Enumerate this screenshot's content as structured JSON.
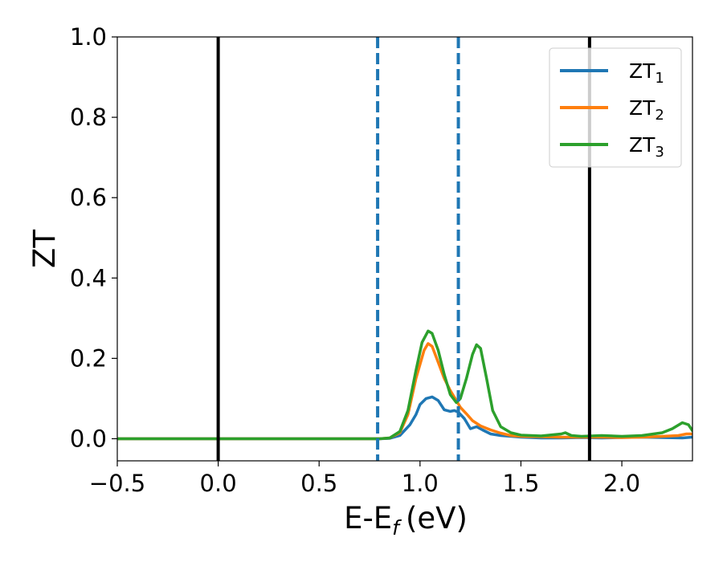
{
  "chart_data": {
    "type": "line",
    "xlabel": "E-E",
    "xlabel_sub": "f",
    "xlabel_unit": "(eV)",
    "ylabel": "ZT",
    "xlim": [
      -0.5,
      2.35
    ],
    "ylim": [
      -0.055,
      1.0
    ],
    "xticks": [
      -0.5,
      0.0,
      0.5,
      1.0,
      1.5,
      2.0
    ],
    "xtick_labels": [
      "−0.5",
      "0.0",
      "0.5",
      "1.0",
      "1.5",
      "2.0"
    ],
    "yticks": [
      0.0,
      0.2,
      0.4,
      0.6,
      0.8,
      1.0
    ],
    "ytick_labels": [
      "0.0",
      "0.2",
      "0.4",
      "0.6",
      "0.8",
      "1.0"
    ],
    "grid": false,
    "legend_position": "top-right",
    "vlines": [
      {
        "x": 0.0,
        "style": "solid",
        "color": "#000000"
      },
      {
        "x": 1.84,
        "style": "solid",
        "color": "#000000"
      },
      {
        "x": 0.79,
        "style": "dashed",
        "color": "#1f77b4"
      },
      {
        "x": 1.19,
        "style": "dashed",
        "color": "#1f77b4"
      }
    ],
    "series": [
      {
        "name": "ZT",
        "name_sub": "1",
        "color": "#1f77b4",
        "points": [
          [
            -0.5,
            0
          ],
          [
            0.8,
            0
          ],
          [
            0.85,
            0.001
          ],
          [
            0.9,
            0.008
          ],
          [
            0.95,
            0.035
          ],
          [
            0.98,
            0.06
          ],
          [
            1.0,
            0.085
          ],
          [
            1.03,
            0.1
          ],
          [
            1.06,
            0.104
          ],
          [
            1.09,
            0.095
          ],
          [
            1.12,
            0.072
          ],
          [
            1.15,
            0.068
          ],
          [
            1.17,
            0.07
          ],
          [
            1.19,
            0.066
          ],
          [
            1.22,
            0.05
          ],
          [
            1.25,
            0.025
          ],
          [
            1.28,
            0.03
          ],
          [
            1.31,
            0.022
          ],
          [
            1.35,
            0.012
          ],
          [
            1.4,
            0.008
          ],
          [
            1.5,
            0.004
          ],
          [
            1.6,
            0.002
          ],
          [
            1.7,
            0.002
          ],
          [
            1.8,
            0.003
          ],
          [
            1.9,
            0.002
          ],
          [
            2.0,
            0.003
          ],
          [
            2.1,
            0.004
          ],
          [
            2.2,
            0.003
          ],
          [
            2.3,
            0.002
          ],
          [
            2.35,
            0.004
          ]
        ]
      },
      {
        "name": "ZT",
        "name_sub": "2",
        "color": "#ff7f0e",
        "points": [
          [
            -0.5,
            0
          ],
          [
            0.8,
            0
          ],
          [
            0.85,
            0.002
          ],
          [
            0.9,
            0.015
          ],
          [
            0.94,
            0.06
          ],
          [
            0.98,
            0.15
          ],
          [
            1.02,
            0.22
          ],
          [
            1.04,
            0.237
          ],
          [
            1.06,
            0.23
          ],
          [
            1.09,
            0.19
          ],
          [
            1.12,
            0.15
          ],
          [
            1.15,
            0.12
          ],
          [
            1.18,
            0.095
          ],
          [
            1.2,
            0.078
          ],
          [
            1.23,
            0.062
          ],
          [
            1.26,
            0.045
          ],
          [
            1.3,
            0.032
          ],
          [
            1.35,
            0.022
          ],
          [
            1.4,
            0.014
          ],
          [
            1.45,
            0.008
          ],
          [
            1.5,
            0.006
          ],
          [
            1.6,
            0.005
          ],
          [
            1.7,
            0.004
          ],
          [
            1.8,
            0.004
          ],
          [
            1.9,
            0.004
          ],
          [
            2.0,
            0.003
          ],
          [
            2.1,
            0.004
          ],
          [
            2.2,
            0.006
          ],
          [
            2.28,
            0.008
          ],
          [
            2.32,
            0.012
          ],
          [
            2.35,
            0.012
          ]
        ]
      },
      {
        "name": "ZT",
        "name_sub": "3",
        "color": "#2ca02c",
        "points": [
          [
            -0.5,
            0
          ],
          [
            0.8,
            0
          ],
          [
            0.85,
            0.002
          ],
          [
            0.9,
            0.018
          ],
          [
            0.94,
            0.07
          ],
          [
            0.98,
            0.17
          ],
          [
            1.01,
            0.24
          ],
          [
            1.04,
            0.268
          ],
          [
            1.06,
            0.262
          ],
          [
            1.09,
            0.22
          ],
          [
            1.12,
            0.16
          ],
          [
            1.15,
            0.11
          ],
          [
            1.18,
            0.09
          ],
          [
            1.2,
            0.1
          ],
          [
            1.23,
            0.15
          ],
          [
            1.26,
            0.21
          ],
          [
            1.28,
            0.234
          ],
          [
            1.3,
            0.225
          ],
          [
            1.33,
            0.15
          ],
          [
            1.36,
            0.07
          ],
          [
            1.4,
            0.03
          ],
          [
            1.45,
            0.015
          ],
          [
            1.5,
            0.009
          ],
          [
            1.6,
            0.007
          ],
          [
            1.7,
            0.012
          ],
          [
            1.72,
            0.015
          ],
          [
            1.75,
            0.008
          ],
          [
            1.8,
            0.006
          ],
          [
            1.9,
            0.008
          ],
          [
            2.0,
            0.006
          ],
          [
            2.1,
            0.008
          ],
          [
            2.2,
            0.015
          ],
          [
            2.25,
            0.025
          ],
          [
            2.3,
            0.04
          ],
          [
            2.33,
            0.035
          ],
          [
            2.35,
            0.02
          ]
        ]
      }
    ]
  }
}
